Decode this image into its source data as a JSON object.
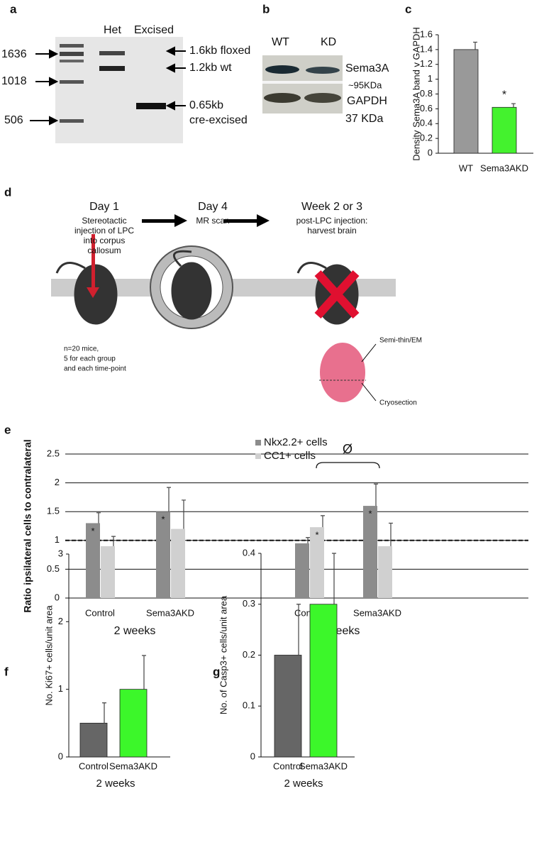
{
  "panel_labels": [
    "a",
    "b",
    "c",
    "d",
    "e",
    "f",
    "g"
  ],
  "gel": {
    "lanes": [
      "Het",
      "Excised"
    ],
    "ladder": [
      "1636",
      "1018",
      "506"
    ],
    "bands": [
      "1.6kb floxed",
      "1.2kb wt",
      "0.65kb",
      "cre-excised"
    ]
  },
  "western": {
    "lanes": [
      "WT",
      "KD"
    ],
    "labels": [
      "Sema3A",
      "~95KDa",
      "GAPDH",
      "37 KDa"
    ]
  },
  "diagram": {
    "steps": [
      {
        "title": "Day 1",
        "text": [
          "Stereotactic",
          "injection of LPC",
          "into corpus",
          "callosum"
        ]
      },
      {
        "title": "Day 4",
        "text": [
          "MR scan"
        ]
      },
      {
        "title": "Week 2 or 3",
        "text": [
          "post-LPC injection:",
          "harvest brain"
        ]
      }
    ],
    "note": [
      "n=20 mice,",
      "5 for each group",
      "and each time-point"
    ],
    "brain": [
      "Semi-thin/EM",
      "Cryosection"
    ]
  },
  "chart_data": [
    {
      "type": "bar",
      "ylabel": "Density Sema3A band v GAPDH",
      "categories": [
        "WT",
        "Sema3AKD"
      ],
      "values": [
        1.4,
        0.62
      ],
      "errors": [
        0.1,
        0.05
      ],
      "colors": [
        "#999999",
        "#44f22e"
      ],
      "markers": [
        null,
        "*"
      ],
      "ylim": [
        0,
        1.6
      ],
      "yticks": [
        0,
        0.2,
        0.4,
        0.6,
        0.8,
        1,
        1.2,
        1.4,
        1.6
      ]
    },
    {
      "type": "bar",
      "ylabel": "Ratio ipsilateral cells to contralateral",
      "categories": [
        "Control",
        "Sema3AKD",
        "Control",
        "Sema3AKD"
      ],
      "groups": [
        "2 weeks",
        "3 weeks"
      ],
      "series": [
        {
          "name": "Nkx2.2+ cells",
          "color": "#8c8c8c",
          "values": [
            1.3,
            1.5,
            0.95,
            1.6
          ],
          "errors": [
            0.18,
            0.42,
            0.1,
            0.38
          ],
          "markers": [
            "*",
            "*",
            null,
            "*"
          ]
        },
        {
          "name": "CC1+ cells",
          "color": "#d0d0d0",
          "values": [
            0.9,
            1.2,
            1.23,
            0.9
          ],
          "errors": [
            0.17,
            0.5,
            0.2,
            0.4
          ],
          "markers": [
            null,
            null,
            "*",
            null
          ]
        }
      ],
      "reference_line": 1,
      "bracket_label": "Ø",
      "ylim": [
        0,
        2.5
      ],
      "yticks": [
        0,
        0.5,
        1,
        1.5,
        2,
        2.5
      ],
      "grid": true
    },
    {
      "type": "bar",
      "ylabel": "No. Ki67+ cells/unit area",
      "xlabel": "2 weeks",
      "categories": [
        "Control",
        "Sema3AKD"
      ],
      "values": [
        0.5,
        1.0
      ],
      "errors": [
        0.3,
        0.5
      ],
      "colors": [
        "#666666",
        "#3cf72a"
      ],
      "ylim": [
        0,
        3
      ],
      "yticks": [
        0,
        1,
        2,
        3
      ]
    },
    {
      "type": "bar",
      "ylabel": "No. of Casp3+ cells/unit area",
      "xlabel": "2 weeks",
      "categories": [
        "Control",
        "Sema3AKD"
      ],
      "values": [
        0.2,
        0.3
      ],
      "errors": [
        0.1,
        0.1
      ],
      "colors": [
        "#666666",
        "#3cf72a"
      ],
      "ylim": [
        0,
        0.4
      ],
      "yticks": [
        0,
        0.1,
        0.2,
        0.3,
        0.4
      ]
    }
  ]
}
